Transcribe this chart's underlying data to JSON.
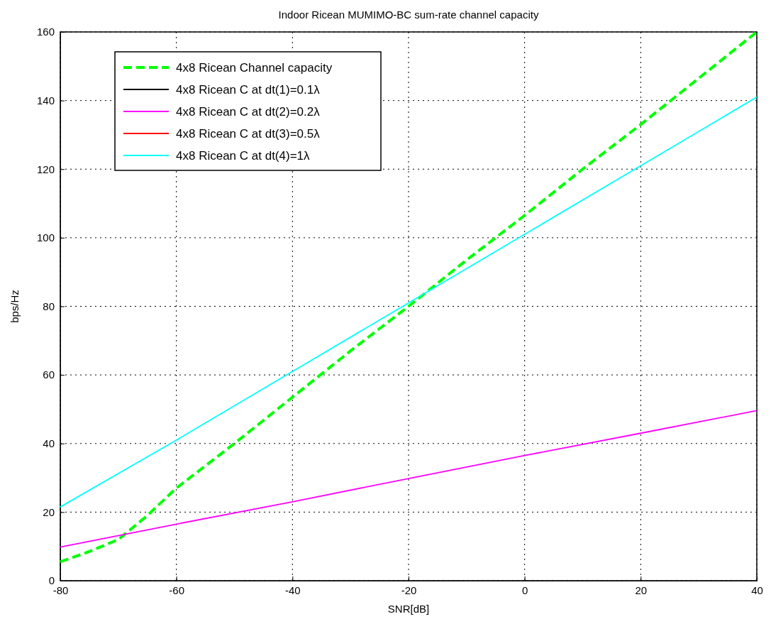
{
  "chart_data": {
    "type": "line",
    "title": "Indoor Ricean MUMIMO-BC sum-rate channel capacity",
    "xlabel": "SNR[dB]",
    "ylabel": "bps/Hz",
    "xlim": [
      -80,
      40
    ],
    "xticks": [
      -80,
      -60,
      -40,
      -20,
      0,
      20,
      40
    ],
    "ylim": [
      0,
      160
    ],
    "yticks": [
      0,
      20,
      40,
      60,
      80,
      100,
      120,
      140,
      160
    ],
    "grid": true,
    "legend": "top left",
    "series": [
      {
        "name": "4x8 Ricean Channel capacity",
        "color": "#00ff00",
        "line_style": "dashed",
        "x": [
          -80,
          -75,
          -70,
          -65,
          -60,
          -50,
          -40,
          -30,
          -20,
          -10,
          0,
          10,
          20,
          30,
          40
        ],
        "values": [
          5.5,
          8.5,
          12,
          19,
          27,
          40,
          53.5,
          67,
          80,
          93.5,
          106.5,
          120,
          133,
          146.5,
          160
        ]
      },
      {
        "name": "4x8 Ricean C at dt(1)=0.1λ",
        "color": "#000000",
        "line_style": "solid"
      },
      {
        "name": "4x8 Ricean C at dt(2)=0.2λ",
        "color": "#ff00ff",
        "line_style": "solid",
        "x": [
          -80,
          -60,
          -40,
          -20,
          0,
          20,
          40
        ],
        "values": [
          9.8,
          16.5,
          23,
          29.8,
          36.5,
          43,
          49.6
        ]
      },
      {
        "name": "4x8 Ricean C at dt(3)=0.5λ",
        "color": "#ff0000",
        "line_style": "solid"
      },
      {
        "name": "4x8 Ricean C at dt(4)=1λ",
        "color": "#00ffff",
        "line_style": "solid",
        "x": [
          -80,
          -60,
          -40,
          -20,
          0,
          20,
          40
        ],
        "values": [
          21.5,
          41,
          61,
          81,
          101,
          121,
          141
        ]
      }
    ]
  }
}
